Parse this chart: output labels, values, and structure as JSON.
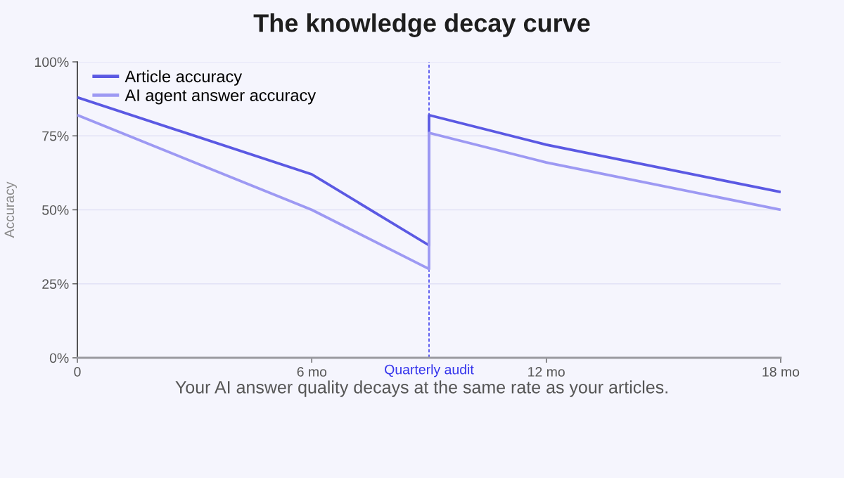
{
  "chart_data": {
    "type": "line",
    "title": "The knowledge decay curve",
    "ylabel": "Accuracy",
    "annotations": [
      "Your AI answer quality decays at the same rate as your articles."
    ],
    "series": [
      {
        "name": "Article accuracy",
        "color": "#5b59e3",
        "x": [
          0,
          6,
          9,
          9,
          12,
          18
        ],
        "values": [
          88,
          62,
          38,
          82,
          72,
          56
        ]
      },
      {
        "name": "AI agent answer accuracy",
        "color": "#9d99f3",
        "x": [
          0,
          6,
          9,
          9,
          12,
          18
        ],
        "values": [
          82,
          50,
          30,
          76,
          66,
          50
        ]
      }
    ],
    "xlim": [
      0,
      18
    ],
    "xticks": [
      0,
      {
        "value": 6,
        "label": "6 mo"
      },
      {
        "value": 12,
        "label": "12 mo"
      },
      {
        "value": 18,
        "label": "18 mo"
      }
    ],
    "ylim": [
      0,
      100
    ],
    "yticks": [
      {
        "value": 0,
        "label": "0%"
      },
      {
        "value": 25,
        "label": "25%"
      },
      {
        "value": 50,
        "label": "50%"
      },
      {
        "value": 75,
        "label": "75%"
      },
      {
        "value": 100,
        "label": "100%"
      }
    ],
    "ref_lines": [
      {
        "axis": "x",
        "value": 9,
        "label": "Quarterly audit",
        "color": "#3535ec",
        "line_style": "dashed"
      }
    ],
    "grid": "y",
    "legend": "top left",
    "marker": "none",
    "line_style": "solid"
  }
}
